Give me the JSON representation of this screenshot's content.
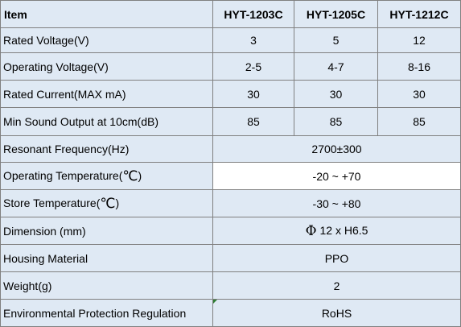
{
  "header": {
    "item": "Item",
    "models": [
      "HYT-1203C",
      "HYT-1205C",
      "HYT-1212C"
    ]
  },
  "rows": {
    "rated_voltage": {
      "label": "Rated Voltage(V)",
      "values": [
        "3",
        "5",
        "12"
      ]
    },
    "operating_voltage": {
      "label": "Operating Voltage(V)",
      "values": [
        "2-5",
        "4-7",
        "8-16"
      ]
    },
    "rated_current": {
      "label": "Rated Current(MAX mA)",
      "values": [
        "30",
        "30",
        "30"
      ]
    },
    "min_sound_output": {
      "label": "Min Sound Output at 10cm(dB)",
      "values": [
        "85",
        "85",
        "85"
      ]
    },
    "resonant_frequency": {
      "label": "Resonant Frequency(Hz)",
      "value": "2700±300"
    },
    "operating_temperature": {
      "label": "Operating Temperature(",
      "unit": "℃",
      "label_end": ")",
      "value": "-20 ~ +70"
    },
    "store_temperature": {
      "label": "Store Temperature(",
      "unit": "℃",
      "label_end": ")",
      "value": "-30 ~ +80"
    },
    "dimension": {
      "label": "Dimension (mm)",
      "symbol": "Φ",
      "value": "12 x H6.5"
    },
    "housing_material": {
      "label": "Housing Material",
      "value": "PPO"
    },
    "weight": {
      "label": "Weight(g)",
      "value": "2"
    },
    "environmental_regulation": {
      "label": "Environmental Protection Regulation",
      "value": "RoHS"
    }
  },
  "colors": {
    "shade": "#dfe9f4",
    "white": "#ffffff",
    "border": "#808080"
  }
}
